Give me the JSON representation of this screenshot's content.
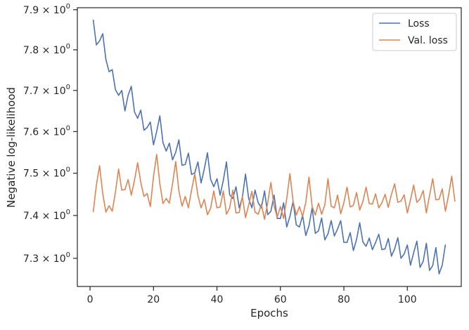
{
  "chart_data": {
    "type": "line",
    "xlabel": "Epochs",
    "ylabel": "Negative log-likelihood",
    "yscale": "log",
    "xlim": [
      -4,
      117
    ],
    "ylim": [
      7.235,
      7.905
    ],
    "grid": false,
    "legend_position": "top-right",
    "x_ticks": [
      {
        "value": 0,
        "label": "0"
      },
      {
        "value": 20,
        "label": "20"
      },
      {
        "value": 40,
        "label": "40"
      },
      {
        "value": 60,
        "label": "60"
      },
      {
        "value": 80,
        "label": "80"
      },
      {
        "value": 100,
        "label": "100"
      }
    ],
    "y_ticks": [
      {
        "value": 7.3,
        "label": "7.3",
        "base": "× 10",
        "exp": "0"
      },
      {
        "value": 7.4,
        "label": "7.4",
        "base": "× 10",
        "exp": "0"
      },
      {
        "value": 7.5,
        "label": "7.5",
        "base": "× 10",
        "exp": "0"
      },
      {
        "value": 7.6,
        "label": "7.6",
        "base": "× 10",
        "exp": "0"
      },
      {
        "value": 7.7,
        "label": "7.7",
        "base": "× 10",
        "exp": "0"
      },
      {
        "value": 7.8,
        "label": "7.8",
        "base": "× 10",
        "exp": "0"
      },
      {
        "value": 7.9,
        "label": "7.9",
        "base": "× 10",
        "exp": "0"
      }
    ],
    "x_start": 1,
    "series": [
      {
        "name": "Loss",
        "color": "#4c72b0",
        "values": [
          7.875,
          7.812,
          7.822,
          7.84,
          7.776,
          7.746,
          7.751,
          7.702,
          7.688,
          7.7,
          7.65,
          7.688,
          7.71,
          7.648,
          7.632,
          7.652,
          7.603,
          7.61,
          7.623,
          7.568,
          7.6,
          7.638,
          7.573,
          7.553,
          7.572,
          7.532,
          7.55,
          7.58,
          7.519,
          7.521,
          7.548,
          7.497,
          7.501,
          7.527,
          7.477,
          7.51,
          7.549,
          7.486,
          7.468,
          7.487,
          7.448,
          7.483,
          7.527,
          7.449,
          7.44,
          7.468,
          7.418,
          7.442,
          7.498,
          7.44,
          7.418,
          7.46,
          7.43,
          7.418,
          7.458,
          7.402,
          7.41,
          7.448,
          7.393,
          7.393,
          7.43,
          7.373,
          7.398,
          7.433,
          7.378,
          7.373,
          7.4,
          7.353,
          7.376,
          7.418,
          7.358,
          7.364,
          7.394,
          7.343,
          7.357,
          7.388,
          7.352,
          7.368,
          7.388,
          7.337,
          7.337,
          7.36,
          7.318,
          7.344,
          7.383,
          7.338,
          7.328,
          7.347,
          7.32,
          7.337,
          7.356,
          7.32,
          7.322,
          7.346,
          7.305,
          7.322,
          7.348,
          7.3,
          7.31,
          7.331,
          7.284,
          7.313,
          7.34,
          7.279,
          7.293,
          7.335,
          7.272,
          7.283,
          7.325,
          7.264,
          7.284,
          7.332
        ]
      },
      {
        "name": "Val. loss",
        "color": "#dd8452",
        "values": [
          7.408,
          7.472,
          7.518,
          7.452,
          7.408,
          7.423,
          7.41,
          7.455,
          7.51,
          7.46,
          7.461,
          7.485,
          7.448,
          7.483,
          7.525,
          7.478,
          7.445,
          7.452,
          7.421,
          7.492,
          7.545,
          7.475,
          7.428,
          7.44,
          7.429,
          7.475,
          7.528,
          7.458,
          7.422,
          7.445,
          7.418,
          7.46,
          7.498,
          7.447,
          7.418,
          7.438,
          7.402,
          7.417,
          7.458,
          7.418,
          7.42,
          7.458,
          7.403,
          7.418,
          7.46,
          7.406,
          7.407,
          7.445,
          7.395,
          7.425,
          7.457,
          7.408,
          7.403,
          7.426,
          7.391,
          7.43,
          7.478,
          7.422,
          7.396,
          7.421,
          7.393,
          7.44,
          7.499,
          7.433,
          7.401,
          7.421,
          7.398,
          7.431,
          7.491,
          7.421,
          7.401,
          7.429,
          7.403,
          7.425,
          7.487,
          7.422,
          7.418,
          7.448,
          7.404,
          7.43,
          7.467,
          7.42,
          7.424,
          7.454,
          7.413,
          7.433,
          7.467,
          7.428,
          7.427,
          7.451,
          7.418,
          7.43,
          7.45,
          7.419,
          7.45,
          7.475,
          7.431,
          7.434,
          7.449,
          7.406,
          7.437,
          7.472,
          7.431,
          7.439,
          7.459,
          7.406,
          7.447,
          7.487,
          7.437,
          7.438,
          7.463,
          7.41,
          7.448,
          7.493,
          7.433
        ]
      }
    ]
  }
}
